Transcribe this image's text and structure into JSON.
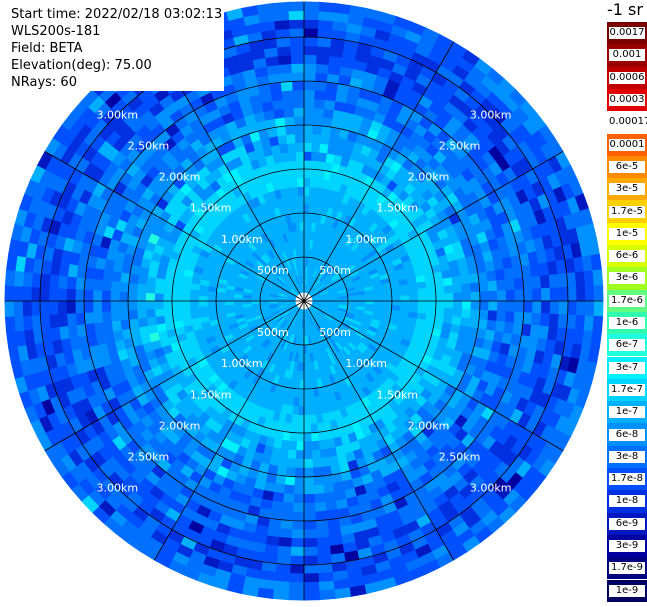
{
  "info": {
    "start_time": "Start time: 2022/02/18 03:02:13",
    "station": "WLS200s-181",
    "field": "Field: BETA",
    "elevation": "Elevation(deg): 75.00",
    "nrays": "NRays: 60"
  },
  "colorbar": {
    "unit": "-1 sr",
    "labels": [
      "0.0017",
      "0.001",
      "0.0006",
      "0.0003",
      "0.00017",
      "0.0001",
      "6e-5",
      "3e-5",
      "1.7e-5",
      "1e-5",
      "6e-6",
      "3e-6",
      "1.7e-6",
      "1e-6",
      "6e-7",
      "3e-7",
      "1.7e-7",
      "1e-7",
      "6e-8",
      "3e-8",
      "1.7e-8",
      "1e-8",
      "6e-9",
      "3e-9",
      "1.7e-9",
      "1e-9"
    ],
    "colors": [
      "#7a0000",
      "#9a0000",
      "#c00000",
      "#e00000",
      "#ffffff",
      "#ff6000",
      "#ff8c00",
      "#ffa800",
      "#ffd000",
      "#ffff00",
      "#d8ff00",
      "#a0ff20",
      "#60ff80",
      "#30ffb0",
      "#20ffe0",
      "#00f0ff",
      "#00d4ff",
      "#00b0ff",
      "#0090ff",
      "#0070ff",
      "#0050ff",
      "#0030e0",
      "#0018c0",
      "#0000a0",
      "#000080",
      "#000060"
    ]
  },
  "chart_data": {
    "type": "heatmap",
    "projection": "polar (PPI scan)",
    "rays": 60,
    "range_rings_km": [
      0.5,
      1.0,
      1.5,
      2.0,
      2.5,
      3.0
    ],
    "ring_labels": [
      "500m",
      "1.00km",
      "1.50km",
      "2.00km",
      "2.50km",
      "3.00km"
    ],
    "max_range_km": 3.4,
    "radial_profile": [
      {
        "range_km": 0.1,
        "level": "blank"
      },
      {
        "range_km": 0.5,
        "level": "1e-7"
      },
      {
        "range_km": 1.0,
        "level": "1e-7"
      },
      {
        "range_km": 1.5,
        "level": "1.7e-7"
      },
      {
        "range_km": 2.0,
        "level": "6e-8"
      },
      {
        "range_km": 2.5,
        "level": "3e-8"
      },
      {
        "range_km": 3.0,
        "level": "1.7e-8"
      },
      {
        "range_km": 3.4,
        "level": "3e-8"
      }
    ]
  }
}
